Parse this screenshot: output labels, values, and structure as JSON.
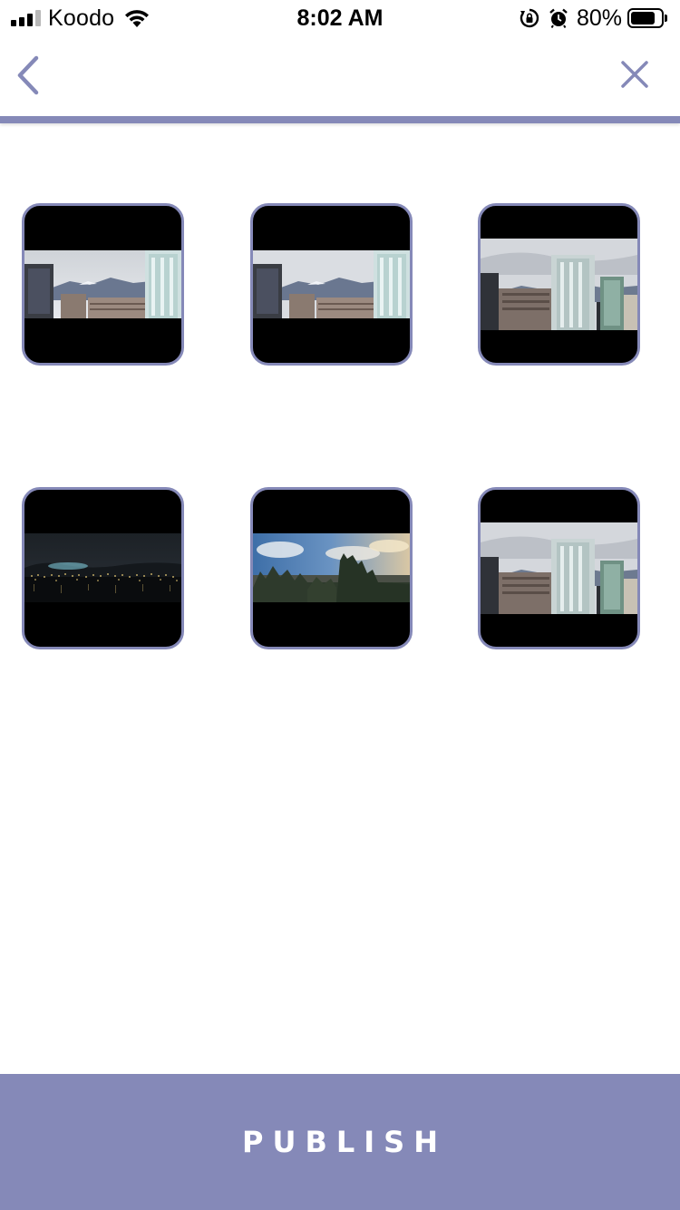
{
  "status_bar": {
    "carrier": "Koodo",
    "time": "8:02 AM",
    "battery_percent": "80%",
    "battery_level": 0.8,
    "signal_bars": 3,
    "icons": [
      "signal-icon",
      "wifi-icon",
      "orientation-lock-icon",
      "alarm-icon",
      "battery-icon"
    ]
  },
  "nav": {
    "back_icon": "chevron-left-icon",
    "close_icon": "close-icon"
  },
  "grid": {
    "photos": [
      {
        "scene": "city-skyline-day"
      },
      {
        "scene": "city-skyline-day"
      },
      {
        "scene": "city-towers-day"
      },
      {
        "scene": "night-shoreline-lights"
      },
      {
        "scene": "forest-sky-sunset"
      },
      {
        "scene": "city-towers-day"
      }
    ]
  },
  "publish": {
    "label": "PUBLISH"
  },
  "colors": {
    "accent": "#8589b8",
    "background": "#ffffff",
    "thumb_bg": "#000000",
    "publish_text": "#ffffff"
  }
}
